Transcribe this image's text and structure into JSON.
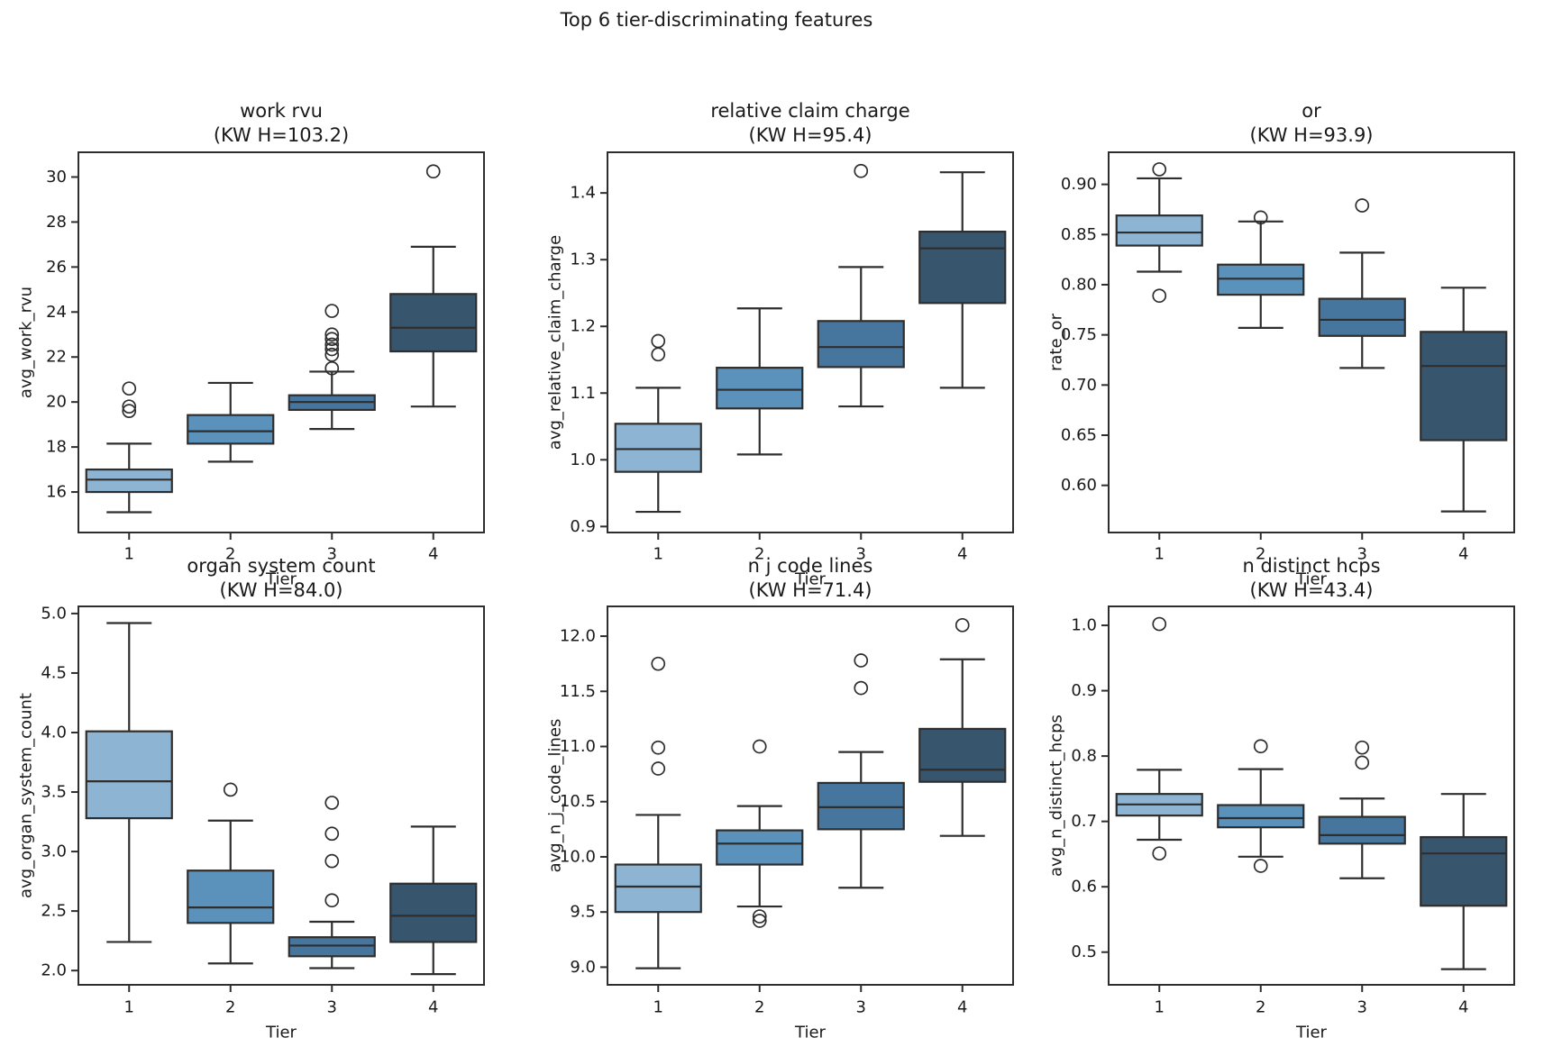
{
  "figure": {
    "title": "Top 6 tier-discriminating features",
    "background": "#ffffff",
    "text_color": "#1a1a1a",
    "edge_color": "#2e2e2e",
    "tier_fill_colors": [
      "#8db4d2",
      "#5b92bb",
      "#46759d",
      "#38556e"
    ],
    "xlabel": "Tier",
    "tiers": [
      "1",
      "2",
      "3",
      "4"
    ]
  },
  "chart_data": [
    {
      "type": "box",
      "title": "work rvu",
      "subtitle": "(KW H=103.2)",
      "kw_h": 103.2,
      "xlabel": "Tier",
      "ylabel": "avg_work_rvu",
      "categories": [
        "1",
        "2",
        "3",
        "4"
      ],
      "ylim": [
        14.2,
        31.1
      ],
      "yticks": [
        16,
        18,
        20,
        22,
        24,
        26,
        28,
        30
      ],
      "ytick_decimals": 0,
      "boxes": [
        {
          "tier": "1",
          "whisker_low": 15.1,
          "q1": 16.0,
          "median": 16.55,
          "q3": 17.0,
          "whisker_high": 18.15,
          "outliers": [
            19.6,
            19.8,
            20.6
          ]
        },
        {
          "tier": "2",
          "whisker_low": 17.35,
          "q1": 18.15,
          "median": 18.7,
          "q3": 19.42,
          "whisker_high": 20.85,
          "outliers": []
        },
        {
          "tier": "3",
          "whisker_low": 18.8,
          "q1": 19.65,
          "median": 20.0,
          "q3": 20.3,
          "whisker_high": 21.35,
          "outliers": [
            21.5,
            22.1,
            22.35,
            22.55,
            22.8,
            23.0,
            24.05
          ]
        },
        {
          "tier": "4",
          "whisker_low": 19.8,
          "q1": 22.25,
          "median": 23.3,
          "q3": 24.8,
          "whisker_high": 26.9,
          "outliers": [
            30.25
          ]
        }
      ]
    },
    {
      "type": "box",
      "title": "relative claim charge",
      "subtitle": "(KW H=95.4)",
      "kw_h": 95.4,
      "xlabel": "Tier",
      "ylabel": "avg_relative_claim_charge",
      "categories": [
        "1",
        "2",
        "3",
        "4"
      ],
      "ylim": [
        0.891,
        1.461
      ],
      "yticks": [
        0.9,
        1.0,
        1.1,
        1.2,
        1.3,
        1.4
      ],
      "ytick_decimals": 1,
      "boxes": [
        {
          "tier": "1",
          "whisker_low": 0.922,
          "q1": 0.982,
          "median": 1.016,
          "q3": 1.054,
          "whisker_high": 1.108,
          "outliers": [
            1.158,
            1.178
          ]
        },
        {
          "tier": "2",
          "whisker_low": 1.008,
          "q1": 1.077,
          "median": 1.105,
          "q3": 1.138,
          "whisker_high": 1.227,
          "outliers": []
        },
        {
          "tier": "3",
          "whisker_low": 1.08,
          "q1": 1.139,
          "median": 1.169,
          "q3": 1.208,
          "whisker_high": 1.289,
          "outliers": [
            1.433
          ]
        },
        {
          "tier": "4",
          "whisker_low": 1.108,
          "q1": 1.235,
          "median": 1.317,
          "q3": 1.342,
          "whisker_high": 1.431,
          "outliers": []
        }
      ]
    },
    {
      "type": "box",
      "title": "or",
      "subtitle": "(KW H=93.9)",
      "kw_h": 93.9,
      "xlabel": "Tier",
      "ylabel": "rate_or",
      "categories": [
        "1",
        "2",
        "3",
        "4"
      ],
      "ylim": [
        0.553,
        0.932
      ],
      "yticks": [
        0.6,
        0.65,
        0.7,
        0.75,
        0.8,
        0.85,
        0.9
      ],
      "ytick_decimals": 2,
      "boxes": [
        {
          "tier": "1",
          "whisker_low": 0.813,
          "q1": 0.839,
          "median": 0.852,
          "q3": 0.869,
          "whisker_high": 0.906,
          "outliers": [
            0.789,
            0.915
          ]
        },
        {
          "tier": "2",
          "whisker_low": 0.757,
          "q1": 0.79,
          "median": 0.806,
          "q3": 0.82,
          "whisker_high": 0.863,
          "outliers": [
            0.867
          ]
        },
        {
          "tier": "3",
          "whisker_low": 0.717,
          "q1": 0.749,
          "median": 0.765,
          "q3": 0.786,
          "whisker_high": 0.832,
          "outliers": [
            0.879
          ]
        },
        {
          "tier": "4",
          "whisker_low": 0.574,
          "q1": 0.645,
          "median": 0.719,
          "q3": 0.753,
          "whisker_high": 0.797,
          "outliers": []
        }
      ]
    },
    {
      "type": "box",
      "title": "organ system count",
      "subtitle": "(KW H=84.0)",
      "kw_h": 84.0,
      "xlabel": "Tier",
      "ylabel": "avg_organ_system_count",
      "categories": [
        "1",
        "2",
        "3",
        "4"
      ],
      "ylim": [
        1.88,
        5.06
      ],
      "yticks": [
        2.0,
        2.5,
        3.0,
        3.5,
        4.0,
        4.5,
        5.0
      ],
      "ytick_decimals": 1,
      "boxes": [
        {
          "tier": "1",
          "whisker_low": 2.24,
          "q1": 3.28,
          "median": 3.59,
          "q3": 4.01,
          "whisker_high": 4.92,
          "outliers": []
        },
        {
          "tier": "2",
          "whisker_low": 2.06,
          "q1": 2.4,
          "median": 2.53,
          "q3": 2.84,
          "whisker_high": 3.26,
          "outliers": [
            3.52
          ]
        },
        {
          "tier": "3",
          "whisker_low": 2.02,
          "q1": 2.12,
          "median": 2.21,
          "q3": 2.28,
          "whisker_high": 2.41,
          "outliers": [
            2.59,
            2.92,
            3.15,
            3.41
          ]
        },
        {
          "tier": "4",
          "whisker_low": 1.97,
          "q1": 2.24,
          "median": 2.46,
          "q3": 2.73,
          "whisker_high": 3.21,
          "outliers": []
        }
      ]
    },
    {
      "type": "box",
      "title": "n j code lines",
      "subtitle": "(KW H=71.4)",
      "kw_h": 71.4,
      "xlabel": "Tier",
      "ylabel": "avg_n_j_code_lines",
      "categories": [
        "1",
        "2",
        "3",
        "4"
      ],
      "ylim": [
        8.84,
        12.27
      ],
      "yticks": [
        9.0,
        9.5,
        10.0,
        10.5,
        11.0,
        11.5,
        12.0
      ],
      "ytick_decimals": 1,
      "boxes": [
        {
          "tier": "1",
          "whisker_low": 8.99,
          "q1": 9.5,
          "median": 9.73,
          "q3": 9.93,
          "whisker_high": 10.38,
          "outliers": [
            10.8,
            10.99,
            11.75
          ]
        },
        {
          "tier": "2",
          "whisker_low": 9.55,
          "q1": 9.93,
          "median": 10.12,
          "q3": 10.24,
          "whisker_high": 10.46,
          "outliers": [
            9.42,
            9.46,
            11.0
          ]
        },
        {
          "tier": "3",
          "whisker_low": 9.72,
          "q1": 10.25,
          "median": 10.45,
          "q3": 10.67,
          "whisker_high": 10.95,
          "outliers": [
            11.53,
            11.78
          ]
        },
        {
          "tier": "4",
          "whisker_low": 10.19,
          "q1": 10.68,
          "median": 10.79,
          "q3": 11.16,
          "whisker_high": 11.79,
          "outliers": [
            12.1
          ]
        }
      ]
    },
    {
      "type": "box",
      "title": "n distinct hcps",
      "subtitle": "(KW H=43.4)",
      "kw_h": 43.4,
      "xlabel": "Tier",
      "ylabel": "avg_n_distinct_hcps",
      "categories": [
        "1",
        "2",
        "3",
        "4"
      ],
      "ylim": [
        0.45,
        1.029
      ],
      "yticks": [
        0.5,
        0.6,
        0.7,
        0.8,
        0.9,
        1.0
      ],
      "ytick_decimals": 1,
      "boxes": [
        {
          "tier": "1",
          "whisker_low": 0.672,
          "q1": 0.709,
          "median": 0.726,
          "q3": 0.742,
          "whisker_high": 0.779,
          "outliers": [
            0.651,
            1.002
          ]
        },
        {
          "tier": "2",
          "whisker_low": 0.646,
          "q1": 0.691,
          "median": 0.705,
          "q3": 0.725,
          "whisker_high": 0.78,
          "outliers": [
            0.632,
            0.815
          ]
        },
        {
          "tier": "3",
          "whisker_low": 0.613,
          "q1": 0.666,
          "median": 0.679,
          "q3": 0.707,
          "whisker_high": 0.735,
          "outliers": [
            0.79,
            0.813
          ]
        },
        {
          "tier": "4",
          "whisker_low": 0.474,
          "q1": 0.571,
          "median": 0.651,
          "q3": 0.676,
          "whisker_high": 0.742,
          "outliers": []
        }
      ]
    }
  ]
}
